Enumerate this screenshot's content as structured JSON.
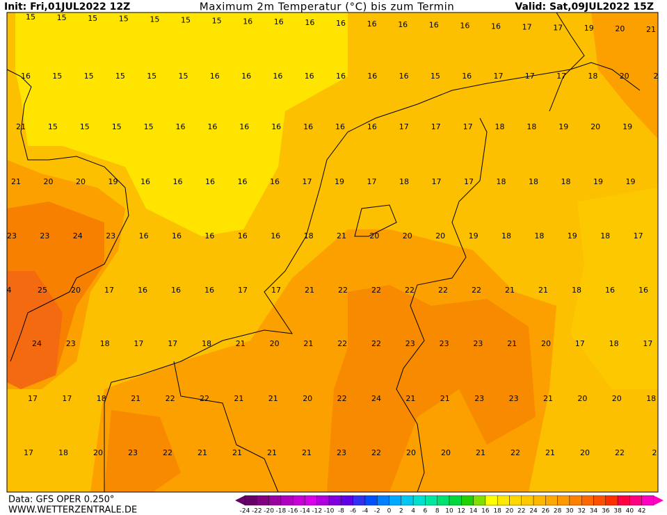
{
  "header": {
    "init": "Init: Fri,01JUL2022 12Z",
    "title": "Maximum 2m Temperatur (°C) bis zum Termin",
    "valid": "Valid: Sat,09JUL2022 15Z"
  },
  "map_values": [
    [
      "15",
      "15",
      "15",
      "15",
      "15",
      "15",
      "15",
      "16",
      "16",
      "16",
      "16",
      "16",
      "16",
      "16",
      "16",
      "16",
      "17",
      "17",
      "19",
      "20",
      "21"
    ],
    [
      "16",
      "15",
      "15",
      "15",
      "15",
      "15",
      "16",
      "16",
      "16",
      "16",
      "16",
      "16",
      "16",
      "15",
      "16",
      "17",
      "17",
      "17",
      "18",
      "20",
      "2"
    ],
    [
      "21",
      "15",
      "15",
      "15",
      "15",
      "16",
      "16",
      "16",
      "16",
      "16",
      "16",
      "16",
      "17",
      "17",
      "17",
      "18",
      "18",
      "19",
      "20",
      "19"
    ],
    [
      "21",
      "20",
      "20",
      "19",
      "16",
      "16",
      "16",
      "16",
      "16",
      "17",
      "19",
      "17",
      "18",
      "17",
      "17",
      "18",
      "18",
      "18",
      "19",
      "19"
    ],
    [
      "23",
      "23",
      "24",
      "23",
      "16",
      "16",
      "16",
      "16",
      "16",
      "18",
      "21",
      "20",
      "20",
      "20",
      "19",
      "18",
      "18",
      "19",
      "18",
      "17"
    ],
    [
      "4",
      "25",
      "20",
      "17",
      "16",
      "16",
      "16",
      "17",
      "17",
      "21",
      "22",
      "22",
      "22",
      "22",
      "22",
      "21",
      "21",
      "18",
      "16",
      "16"
    ],
    [
      "24",
      "23",
      "18",
      "17",
      "17",
      "18",
      "21",
      "20",
      "21",
      "22",
      "22",
      "23",
      "23",
      "23",
      "21",
      "20",
      "17",
      "18",
      "17"
    ],
    [
      "17",
      "17",
      "18",
      "21",
      "22",
      "22",
      "21",
      "21",
      "20",
      "22",
      "24",
      "21",
      "21",
      "23",
      "23",
      "21",
      "20",
      "20",
      "18"
    ],
    [
      "17",
      "18",
      "20",
      "23",
      "22",
      "21",
      "21",
      "21",
      "21",
      "23",
      "22",
      "20",
      "20",
      "21",
      "22",
      "21",
      "20",
      "22",
      "2"
    ]
  ],
  "legend": {
    "labels": [
      "-24",
      "-22",
      "-20",
      "-18",
      "-16",
      "-14",
      "-12",
      "-10",
      "-8",
      "-6",
      "-4",
      "-2",
      "0",
      "2",
      "4",
      "6",
      "8",
      "10",
      "12",
      "14",
      "16",
      "18",
      "20",
      "22",
      "24",
      "26",
      "28",
      "30",
      "32",
      "34",
      "36",
      "38",
      "40",
      "42"
    ],
    "colors": [
      "#660066",
      "#800080",
      "#9900a0",
      "#b000c0",
      "#c800d8",
      "#d800e8",
      "#b000e0",
      "#8000e0",
      "#6000e8",
      "#3030f0",
      "#0050ff",
      "#0080ff",
      "#00a8ff",
      "#00c8f0",
      "#00e0d0",
      "#00e8a0",
      "#00e070",
      "#00d840",
      "#20d000",
      "#80e000",
      "#ffff00",
      "#ffe800",
      "#ffd800",
      "#ffc800",
      "#ffb800",
      "#ffa800",
      "#ff9800",
      "#ff8000",
      "#ff6800",
      "#ff5000",
      "#ff3000",
      "#ff0040",
      "#ff0080",
      "#ff00c0"
    ]
  },
  "footer": {
    "data": "Data: GFS OPER 0.250°",
    "site": "WWW.WETTERZENTRALE.DE"
  }
}
